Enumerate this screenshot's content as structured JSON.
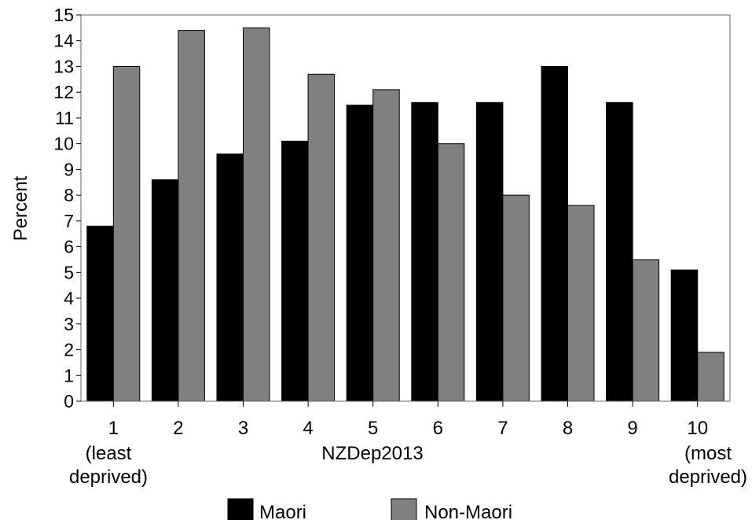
{
  "chart_data": {
    "type": "bar",
    "xlabel": "NZDep2013",
    "ylabel": "Percent",
    "ylim": [
      0,
      15
    ],
    "yticks": [
      0,
      1,
      2,
      3,
      4,
      5,
      6,
      7,
      8,
      9,
      10,
      11,
      12,
      13,
      14,
      15
    ],
    "categories": [
      "1",
      "2",
      "3",
      "4",
      "5",
      "6",
      "7",
      "8",
      "9",
      "10"
    ],
    "category_notes": {
      "first": [
        "(least",
        "deprived)"
      ],
      "last": [
        "(most",
        "deprived)"
      ]
    },
    "series": [
      {
        "name": "Maori",
        "color": "#000000",
        "values": [
          6.8,
          8.6,
          9.6,
          10.1,
          11.5,
          11.6,
          11.6,
          13.0,
          11.6,
          5.1
        ]
      },
      {
        "name": "Non-Maori",
        "color": "#808080",
        "values": [
          13.0,
          14.4,
          14.5,
          12.7,
          12.1,
          10.0,
          8.0,
          7.6,
          5.5,
          1.9
        ]
      }
    ],
    "grid": false,
    "legend": "bottom"
  }
}
